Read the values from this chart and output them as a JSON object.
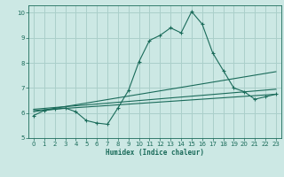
{
  "xlabel": "Humidex (Indice chaleur)",
  "bg_color": "#cce8e4",
  "grid_color": "#aacfca",
  "line_color": "#1a6b5a",
  "xlim": [
    -0.5,
    23.5
  ],
  "ylim": [
    5,
    10.3
  ],
  "yticks": [
    5,
    6,
    7,
    8,
    9,
    10
  ],
  "xticks": [
    0,
    1,
    2,
    3,
    4,
    5,
    6,
    7,
    8,
    9,
    10,
    11,
    12,
    13,
    14,
    15,
    16,
    17,
    18,
    19,
    20,
    21,
    22,
    23
  ],
  "line1_x": [
    0,
    1,
    2,
    3,
    4,
    5,
    6,
    7,
    8,
    9,
    10,
    11,
    12,
    13,
    14,
    15,
    16,
    17,
    18,
    19,
    20,
    21,
    22,
    23
  ],
  "line1_y": [
    5.9,
    6.1,
    6.15,
    6.2,
    6.05,
    5.7,
    5.6,
    5.55,
    6.2,
    6.9,
    8.05,
    8.9,
    9.1,
    9.4,
    9.2,
    10.05,
    9.55,
    8.4,
    7.7,
    7.0,
    6.85,
    6.55,
    6.65,
    6.75
  ],
  "line2_x": [
    0,
    23
  ],
  "line2_y": [
    6.05,
    7.65
  ],
  "line3_x": [
    0,
    23
  ],
  "line3_y": [
    6.1,
    6.75
  ],
  "line4_x": [
    0,
    23
  ],
  "line4_y": [
    6.15,
    6.95
  ]
}
